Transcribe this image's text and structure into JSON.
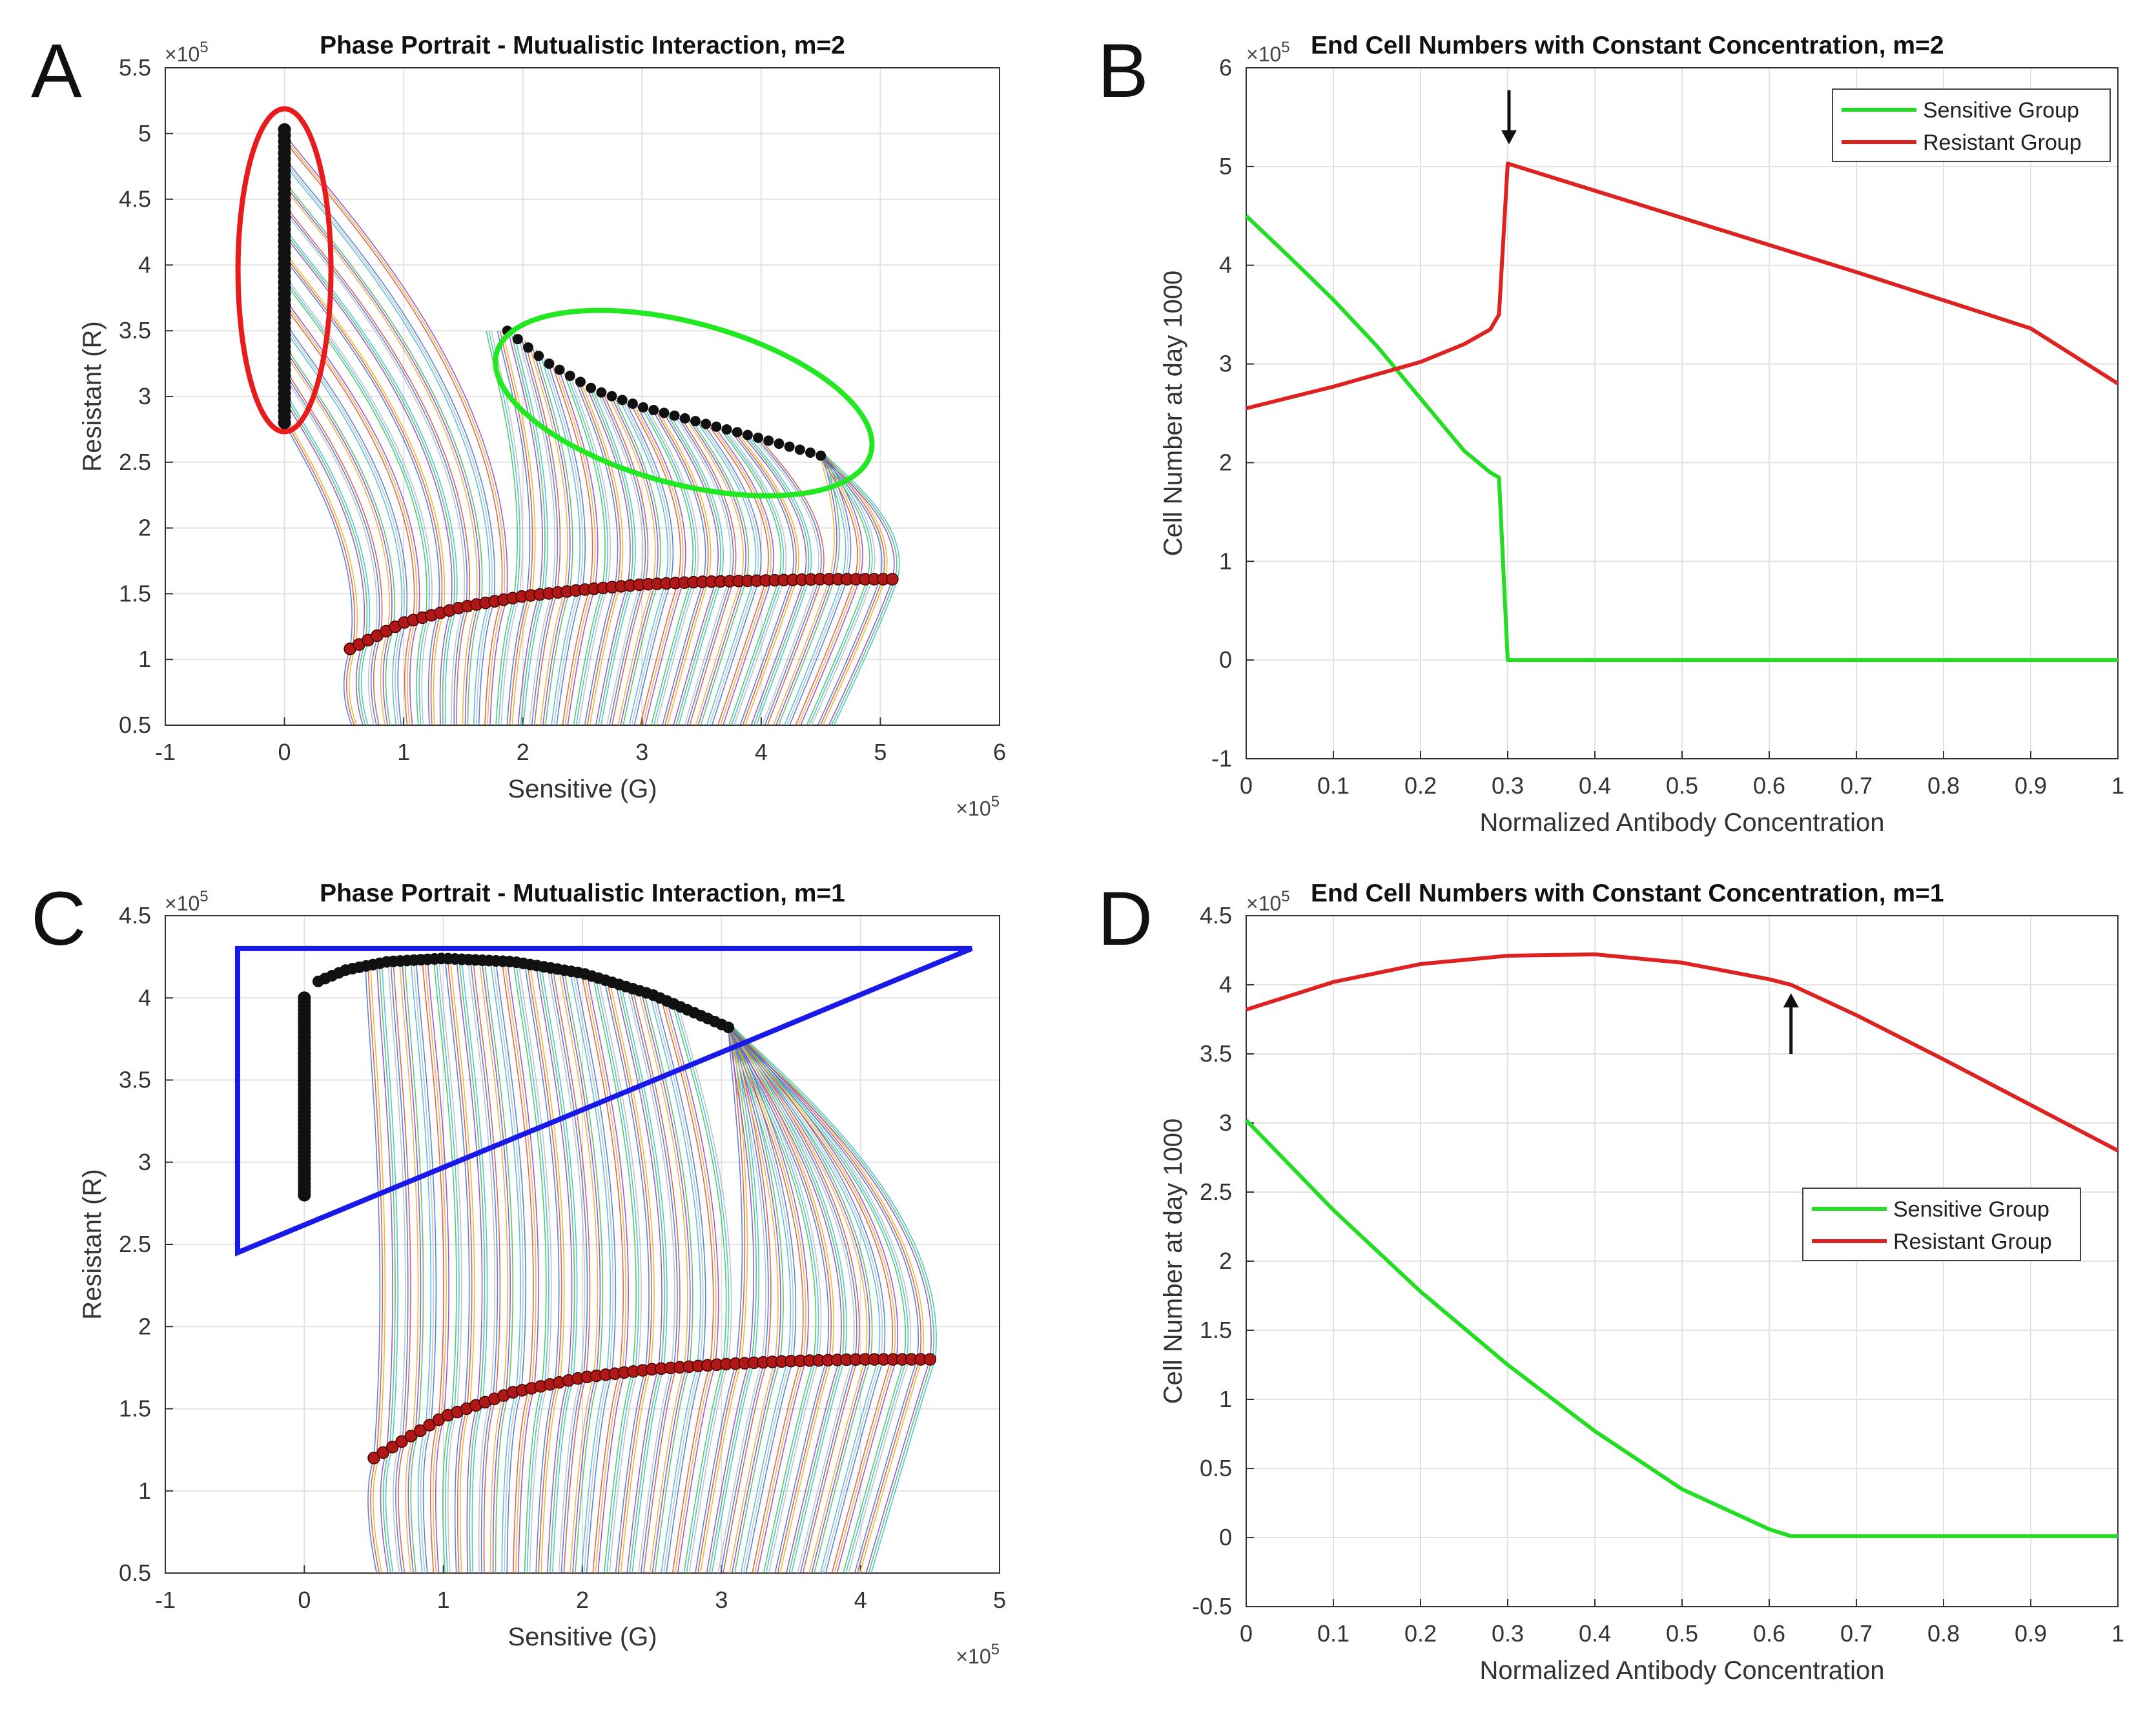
{
  "colors": {
    "sensitive": "#22dd22",
    "resistant": "#dd2222",
    "grid": "#e2e2e2",
    "axis": "#333333",
    "marker_black": "#111111",
    "marker_red": "#b01818",
    "ellipse_red": "#e81c1c",
    "ellipse_green": "#22e822",
    "triangle_blue": "#1a1ae8",
    "arrow": "#111111"
  },
  "chart_data": [
    {
      "panel": "A",
      "type": "line",
      "title": "Phase Portrait - Mutualistic Interaction, m=2",
      "xlabel": "Sensitive (G)",
      "ylabel": "Resistant (R)",
      "xlim": [
        -1,
        6
      ],
      "ylim": [
        0.5,
        5.5
      ],
      "x_ticks": [
        -1,
        0,
        1,
        2,
        3,
        4,
        5,
        6
      ],
      "y_ticks": [
        0.5,
        1,
        1.5,
        2,
        2.5,
        3,
        3.5,
        4,
        4.5,
        5,
        5.5
      ],
      "x_multiplier": "×10^5",
      "y_multiplier": "×10^5",
      "grid": true,
      "start_curve": {
        "x": [
          0.55,
          1.0,
          1.5,
          2.0,
          2.5,
          3.0,
          3.5,
          4.0,
          4.5,
          5.1
        ],
        "y": [
          1.08,
          1.28,
          1.4,
          1.48,
          1.53,
          1.57,
          1.59,
          1.6,
          1.61,
          1.61
        ]
      },
      "end_points_black": {
        "x": [
          0,
          0,
          0,
          0,
          0,
          1.87,
          2.2,
          2.6,
          3.0,
          3.5,
          4.0,
          4.5
        ],
        "y": [
          2.8,
          3.3,
          3.8,
          4.3,
          5.03,
          3.5,
          3.26,
          3.05,
          2.92,
          2.8,
          2.68,
          2.55
        ]
      },
      "annotations": [
        "red ellipse around G = 0 endpoints",
        "green ellipse around coexistence endpoints"
      ]
    },
    {
      "panel": "B",
      "type": "line",
      "title": "End Cell Numbers with Constant Concentration, m=2",
      "xlabel": "Normalized Antibody Concentration",
      "ylabel": "Cell Number at day 1000",
      "xlim": [
        0,
        1
      ],
      "ylim": [
        -1,
        6
      ],
      "x_ticks": [
        0,
        0.1,
        0.2,
        0.3,
        0.4,
        0.5,
        0.6,
        0.7,
        0.8,
        0.9,
        1
      ],
      "y_ticks": [
        -1,
        0,
        1,
        2,
        3,
        4,
        5,
        6
      ],
      "y_multiplier": "×10^5",
      "grid": true,
      "legend": "top-right",
      "series": [
        {
          "name": "Sensitive Group",
          "x": [
            0,
            0.05,
            0.1,
            0.15,
            0.2,
            0.25,
            0.28,
            0.29,
            0.3,
            1
          ],
          "y": [
            4.5,
            4.08,
            3.65,
            3.18,
            2.65,
            2.12,
            1.9,
            1.85,
            0,
            0
          ]
        },
        {
          "name": "Resistant Group",
          "x": [
            0,
            0.1,
            0.2,
            0.25,
            0.28,
            0.29,
            0.3,
            0.5,
            0.7,
            0.9,
            1
          ],
          "y": [
            2.55,
            2.77,
            3.02,
            3.2,
            3.35,
            3.5,
            5.03,
            4.48,
            3.93,
            3.36,
            2.8
          ]
        }
      ],
      "arrow_at_x": 0.3
    },
    {
      "panel": "C",
      "type": "line",
      "title": "Phase Portrait - Mutualistic Interaction, m=1",
      "xlabel": "Sensitive (G)",
      "ylabel": "Resistant (R)",
      "xlim": [
        -1,
        5
      ],
      "ylim": [
        0.5,
        4.5
      ],
      "x_ticks": [
        -1,
        0,
        1,
        2,
        3,
        4,
        5
      ],
      "y_ticks": [
        0.5,
        1,
        1.5,
        2,
        2.5,
        3,
        3.5,
        4,
        4.5
      ],
      "x_multiplier": "×10^5",
      "y_multiplier": "×10^5",
      "grid": true,
      "start_curve": {
        "x": [
          0.5,
          1.0,
          1.5,
          2.0,
          2.5,
          3.0,
          3.5,
          4.0,
          4.5
        ],
        "y": [
          1.2,
          1.45,
          1.6,
          1.69,
          1.74,
          1.77,
          1.79,
          1.8,
          1.8
        ]
      },
      "end_points_black": {
        "x": [
          0,
          0,
          0,
          0,
          0.1,
          0.3,
          0.6,
          1.0,
          1.5,
          2.0,
          2.5,
          3.05
        ],
        "y": [
          2.8,
          3.2,
          3.6,
          4.0,
          4.1,
          4.17,
          4.22,
          4.24,
          4.22,
          4.15,
          4.02,
          3.82
        ]
      },
      "annotations": [
        "blue triangle around endpoints"
      ]
    },
    {
      "panel": "D",
      "type": "line",
      "title": "End Cell Numbers with Constant Concentration, m=1",
      "xlabel": "Normalized Antibody Concentration",
      "ylabel": "Cell Number at day 1000",
      "xlim": [
        0,
        1
      ],
      "ylim": [
        -0.5,
        4.5
      ],
      "x_ticks": [
        0,
        0.1,
        0.2,
        0.3,
        0.4,
        0.5,
        0.6,
        0.7,
        0.8,
        0.9,
        1
      ],
      "y_ticks": [
        -0.5,
        0,
        0.5,
        1,
        1.5,
        2,
        2.5,
        3,
        3.5,
        4,
        4.5
      ],
      "y_multiplier": "×10^5",
      "grid": true,
      "legend": "middle-right",
      "series": [
        {
          "name": "Sensitive Group",
          "x": [
            0,
            0.1,
            0.2,
            0.3,
            0.4,
            0.5,
            0.6,
            0.625,
            1
          ],
          "y": [
            3.02,
            2.37,
            1.78,
            1.25,
            0.77,
            0.35,
            0.06,
            0.01,
            0.01
          ]
        },
        {
          "name": "Resistant Group",
          "x": [
            0,
            0.1,
            0.2,
            0.3,
            0.4,
            0.5,
            0.6,
            0.625,
            0.7,
            0.8,
            0.9,
            1
          ],
          "y": [
            3.82,
            4.02,
            4.15,
            4.21,
            4.22,
            4.16,
            4.04,
            4.0,
            3.78,
            3.46,
            3.13,
            2.8
          ]
        }
      ],
      "arrow_at_x": 0.625
    }
  ]
}
